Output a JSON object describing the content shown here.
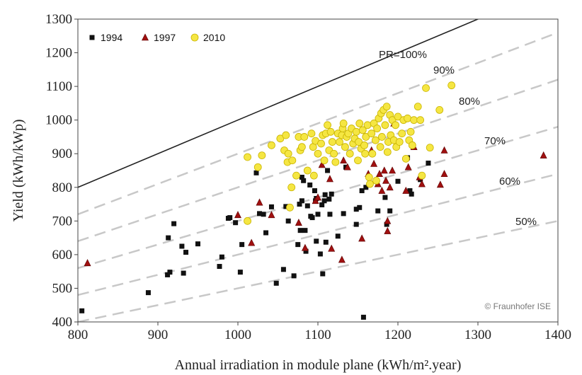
{
  "chart_data": {
    "type": "scatter",
    "title": "",
    "xlabel": "Annual irradiation in module plane (kWh/m².year)",
    "ylabel": "Yield (kWh/kWp)",
    "xlim": [
      800,
      1400
    ],
    "ylim": [
      400,
      1300
    ],
    "xticks": [
      800,
      900,
      1000,
      1100,
      1200,
      1300,
      1400
    ],
    "yticks": [
      400,
      500,
      600,
      700,
      800,
      900,
      1000,
      1100,
      1200,
      1300
    ],
    "grid": false,
    "legend_position": "top-left",
    "credit": "© Fraunhofer ISE",
    "pr_lines": [
      {
        "label": "PR=100%",
        "pr": 1.0,
        "style": "solid",
        "color": "#222222"
      },
      {
        "label": "90%",
        "pr": 0.9,
        "style": "dashed",
        "color": "#c8c8c8"
      },
      {
        "label": "80%",
        "pr": 0.8,
        "style": "dashed",
        "color": "#c8c8c8"
      },
      {
        "label": "70%",
        "pr": 0.7,
        "style": "dashed",
        "color": "#c8c8c8"
      },
      {
        "label": "60%",
        "pr": 0.6,
        "style": "dashed",
        "color": "#c8c8c8"
      },
      {
        "label": "50%",
        "pr": 0.5,
        "style": "dashed",
        "color": "#c8c8c8"
      }
    ],
    "series": [
      {
        "name": "1994",
        "marker": "square",
        "color": "#111111",
        "points": [
          [
            805,
            433
          ],
          [
            888,
            487
          ],
          [
            912,
            540
          ],
          [
            913,
            650
          ],
          [
            915,
            548
          ],
          [
            920,
            692
          ],
          [
            930,
            625
          ],
          [
            932,
            545
          ],
          [
            935,
            607
          ],
          [
            950,
            632
          ],
          [
            977,
            565
          ],
          [
            980,
            593
          ],
          [
            988,
            708
          ],
          [
            990,
            710
          ],
          [
            997,
            695
          ],
          [
            1005,
            630
          ],
          [
            1003,
            548
          ],
          [
            1023,
            843
          ],
          [
            1027,
            722
          ],
          [
            1032,
            720
          ],
          [
            1035,
            665
          ],
          [
            1042,
            742
          ],
          [
            1048,
            515
          ],
          [
            1057,
            556
          ],
          [
            1063,
            700
          ],
          [
            1060,
            743
          ],
          [
            1070,
            537
          ],
          [
            1075,
            630
          ],
          [
            1077,
            750
          ],
          [
            1078,
            672
          ],
          [
            1080,
            760
          ],
          [
            1080,
            830
          ],
          [
            1082,
            820
          ],
          [
            1084,
            672
          ],
          [
            1085,
            610
          ],
          [
            1087,
            745
          ],
          [
            1090,
            807
          ],
          [
            1091,
            714
          ],
          [
            1093,
            710
          ],
          [
            1096,
            790
          ],
          [
            1097,
            760
          ],
          [
            1098,
            767
          ],
          [
            1098,
            640
          ],
          [
            1100,
            720
          ],
          [
            1103,
            602
          ],
          [
            1105,
            748
          ],
          [
            1106,
            543
          ],
          [
            1108,
            760
          ],
          [
            1109,
            778
          ],
          [
            1110,
            637
          ],
          [
            1112,
            850
          ],
          [
            1114,
            765
          ],
          [
            1115,
            720
          ],
          [
            1117,
            780
          ],
          [
            1125,
            655
          ],
          [
            1132,
            722
          ],
          [
            1135,
            860
          ],
          [
            1148,
            690
          ],
          [
            1148,
            735
          ],
          [
            1152,
            740
          ],
          [
            1155,
            790
          ],
          [
            1157,
            414
          ],
          [
            1160,
            800
          ],
          [
            1175,
            730
          ],
          [
            1184,
            770
          ],
          [
            1186,
            690
          ],
          [
            1190,
            730
          ],
          [
            1200,
            818
          ],
          [
            1212,
            888
          ],
          [
            1215,
            790
          ],
          [
            1217,
            780
          ],
          [
            1228,
            823
          ],
          [
            1238,
            872
          ]
        ]
      },
      {
        "name": "1997",
        "marker": "triangle",
        "color": "#a01010",
        "points": [
          [
            812,
            575
          ],
          [
            1000,
            718
          ],
          [
            1017,
            635
          ],
          [
            1027,
            755
          ],
          [
            1042,
            718
          ],
          [
            1076,
            695
          ],
          [
            1084,
            620
          ],
          [
            1097,
            760
          ],
          [
            1100,
            770
          ],
          [
            1105,
            867
          ],
          [
            1115,
            825
          ],
          [
            1117,
            618
          ],
          [
            1130,
            585
          ],
          [
            1132,
            880
          ],
          [
            1137,
            860
          ],
          [
            1155,
            648
          ],
          [
            1163,
            840
          ],
          [
            1167,
            910
          ],
          [
            1170,
            870
          ],
          [
            1175,
            810
          ],
          [
            1177,
            840
          ],
          [
            1180,
            790
          ],
          [
            1183,
            850
          ],
          [
            1185,
            820
          ],
          [
            1187,
            670
          ],
          [
            1187,
            700
          ],
          [
            1190,
            800
          ],
          [
            1193,
            850
          ],
          [
            1195,
            990
          ],
          [
            1210,
            790
          ],
          [
            1213,
            860
          ],
          [
            1220,
            920
          ],
          [
            1227,
            830
          ],
          [
            1230,
            810
          ],
          [
            1253,
            808
          ],
          [
            1258,
            910
          ],
          [
            1258,
            840
          ],
          [
            1382,
            895
          ]
        ]
      },
      {
        "name": "2010",
        "marker": "circle",
        "color": "#f5e642",
        "points": [
          [
            1012,
            700
          ],
          [
            1012,
            890
          ],
          [
            1025,
            860
          ],
          [
            1030,
            895
          ],
          [
            1042,
            925
          ],
          [
            1053,
            945
          ],
          [
            1058,
            910
          ],
          [
            1060,
            955
          ],
          [
            1062,
            875
          ],
          [
            1063,
            900
          ],
          [
            1065,
            740
          ],
          [
            1067,
            800
          ],
          [
            1068,
            880
          ],
          [
            1073,
            835
          ],
          [
            1076,
            950
          ],
          [
            1078,
            910
          ],
          [
            1080,
            920
          ],
          [
            1083,
            950
          ],
          [
            1087,
            850
          ],
          [
            1092,
            960
          ],
          [
            1094,
            920
          ],
          [
            1095,
            835
          ],
          [
            1097,
            938
          ],
          [
            1100,
            900
          ],
          [
            1104,
            930
          ],
          [
            1106,
            955
          ],
          [
            1108,
            880
          ],
          [
            1110,
            960
          ],
          [
            1112,
            985
          ],
          [
            1114,
            910
          ],
          [
            1116,
            965
          ],
          [
            1118,
            935
          ],
          [
            1120,
            900
          ],
          [
            1122,
            875
          ],
          [
            1125,
            960
          ],
          [
            1127,
            935
          ],
          [
            1130,
            955
          ],
          [
            1131,
            975
          ],
          [
            1132,
            990
          ],
          [
            1134,
            920
          ],
          [
            1136,
            950
          ],
          [
            1138,
            960
          ],
          [
            1140,
            900
          ],
          [
            1142,
            975
          ],
          [
            1144,
            930
          ],
          [
            1146,
            945
          ],
          [
            1148,
            965
          ],
          [
            1150,
            880
          ],
          [
            1151,
            935
          ],
          [
            1152,
            990
          ],
          [
            1154,
            915
          ],
          [
            1156,
            970
          ],
          [
            1158,
            925
          ],
          [
            1159,
            900
          ],
          [
            1160,
            950
          ],
          [
            1162,
            985
          ],
          [
            1164,
            830
          ],
          [
            1165,
            810
          ],
          [
            1167,
            960
          ],
          [
            1168,
            900
          ],
          [
            1170,
            990
          ],
          [
            1172,
            940
          ],
          [
            1173,
            820
          ],
          [
            1174,
            975
          ],
          [
            1176,
            1005
          ],
          [
            1178,
            920
          ],
          [
            1179,
            1020
          ],
          [
            1180,
            950
          ],
          [
            1182,
            1030
          ],
          [
            1184,
            985
          ],
          [
            1186,
            1040
          ],
          [
            1187,
            905
          ],
          [
            1188,
            935
          ],
          [
            1190,
            1015
          ],
          [
            1191,
            955
          ],
          [
            1193,
            1000
          ],
          [
            1195,
            940
          ],
          [
            1197,
            985
          ],
          [
            1198,
            920
          ],
          [
            1200,
            1010
          ],
          [
            1202,
            935
          ],
          [
            1205,
            960
          ],
          [
            1207,
            1000
          ],
          [
            1210,
            885
          ],
          [
            1212,
            1005
          ],
          [
            1214,
            940
          ],
          [
            1216,
            965
          ],
          [
            1218,
            925
          ],
          [
            1220,
            1000
          ],
          [
            1225,
            1040
          ],
          [
            1228,
            1000
          ],
          [
            1230,
            835
          ],
          [
            1235,
            1095
          ],
          [
            1240,
            918
          ],
          [
            1252,
            1030
          ],
          [
            1267,
            1103
          ]
        ]
      }
    ]
  }
}
